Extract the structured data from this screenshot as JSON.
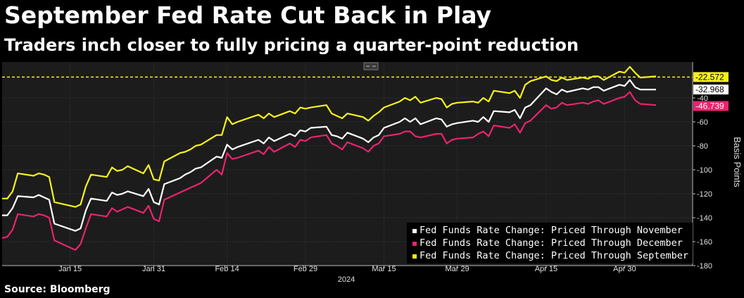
{
  "title": "September Fed Rate Cut Back in Play",
  "subtitle": "Traders inch closer to fully pricing a quarter-point reduction",
  "source": "Source: Bloomberg",
  "colors": {
    "background": "#000000",
    "plot_background": "#1c1c1c",
    "november": "#ffffff",
    "december": "#e8246e",
    "september": "#f7f21c"
  },
  "chart_data": {
    "type": "line",
    "ylabel": "Basis Points",
    "ylim": [
      -180,
      -10
    ],
    "yticks": [
      -40,
      -60,
      -80,
      -100,
      -120,
      -140,
      -160,
      -180
    ],
    "x_tick_labels": [
      "Jan 15",
      "Jan 31",
      "Feb 14",
      "Feb 29",
      "Mar 15",
      "Mar 29",
      "Apr 15",
      "Apr 30"
    ],
    "x_tick_dates": [
      "2024-01-15",
      "2024-01-31",
      "2024-02-14",
      "2024-02-29",
      "2024-03-15",
      "2024-03-29",
      "2024-04-15",
      "2024-04-30"
    ],
    "year_label": "2024",
    "xlim": [
      "2024-01-02",
      "2024-05-13"
    ],
    "reference_line": {
      "value": -22.572,
      "style": "dashed",
      "color": "#f7f21c"
    },
    "x": [
      "2024-01-02",
      "2024-01-03",
      "2024-01-04",
      "2024-01-05",
      "2024-01-08",
      "2024-01-09",
      "2024-01-10",
      "2024-01-11",
      "2024-01-12",
      "2024-01-16",
      "2024-01-17",
      "2024-01-18",
      "2024-01-19",
      "2024-01-22",
      "2024-01-23",
      "2024-01-24",
      "2024-01-25",
      "2024-01-26",
      "2024-01-29",
      "2024-01-30",
      "2024-01-31",
      "2024-02-01",
      "2024-02-02",
      "2024-02-05",
      "2024-02-06",
      "2024-02-07",
      "2024-02-08",
      "2024-02-09",
      "2024-02-12",
      "2024-02-13",
      "2024-02-14",
      "2024-02-15",
      "2024-02-16",
      "2024-02-20",
      "2024-02-21",
      "2024-02-22",
      "2024-02-23",
      "2024-02-26",
      "2024-02-27",
      "2024-02-28",
      "2024-02-29",
      "2024-03-01",
      "2024-03-04",
      "2024-03-05",
      "2024-03-06",
      "2024-03-07",
      "2024-03-08",
      "2024-03-11",
      "2024-03-12",
      "2024-03-13",
      "2024-03-14",
      "2024-03-15",
      "2024-03-18",
      "2024-03-19",
      "2024-03-20",
      "2024-03-21",
      "2024-03-22",
      "2024-03-25",
      "2024-03-26",
      "2024-03-27",
      "2024-03-28",
      "2024-03-29",
      "2024-04-01",
      "2024-04-02",
      "2024-04-03",
      "2024-04-04",
      "2024-04-05",
      "2024-04-08",
      "2024-04-09",
      "2024-04-10",
      "2024-04-11",
      "2024-04-12",
      "2024-04-15",
      "2024-04-16",
      "2024-04-17",
      "2024-04-18",
      "2024-04-19",
      "2024-04-22",
      "2024-04-23",
      "2024-04-24",
      "2024-04-25",
      "2024-04-26",
      "2024-04-29",
      "2024-04-30",
      "2024-05-01",
      "2024-05-02",
      "2024-05-03",
      "2024-05-06"
    ],
    "series": [
      {
        "name": "Fed Funds Rate Change: Priced Through November",
        "color": "#ffffff",
        "end_value": -32.968,
        "values": [
          -138,
          -138,
          -132,
          -122,
          -123,
          -121,
          -123,
          -125,
          -145,
          -151,
          -149,
          -134,
          -124,
          -126,
          -119,
          -121,
          -120,
          -118,
          -122,
          -116,
          -127,
          -129,
          -112,
          -107,
          -104,
          -102,
          -99,
          -98,
          -89,
          -90,
          -79,
          -83,
          -81,
          -75,
          -78,
          -73,
          -76,
          -70,
          -72,
          -67,
          -68,
          -65,
          -64,
          -71,
          -72,
          -74,
          -69,
          -74,
          -77,
          -73,
          -71,
          -65,
          -60,
          -57,
          -60,
          -57,
          -62,
          -57,
          -58,
          -64,
          -62,
          -61,
          -59,
          -60,
          -56,
          -60,
          -51,
          -52,
          -50,
          -57,
          -48,
          -46,
          -32,
          -35,
          -37,
          -33,
          -35,
          -32,
          -33,
          -31,
          -31,
          -34,
          -29,
          -30,
          -25,
          -31,
          -33,
          -33
        ]
      },
      {
        "name": "Fed Funds Rate Change: Priced Through December",
        "color": "#e8246e",
        "end_value": -46.739,
        "values": [
          -157,
          -156,
          -150,
          -137,
          -139,
          -137,
          -138,
          -140,
          -159,
          -167,
          -162,
          -149,
          -137,
          -139,
          -132,
          -135,
          -133,
          -131,
          -136,
          -130,
          -141,
          -143,
          -125,
          -119,
          -117,
          -115,
          -113,
          -111,
          -100,
          -104,
          -86,
          -91,
          -90,
          -84,
          -87,
          -81,
          -85,
          -78,
          -81,
          -75,
          -76,
          -73,
          -71,
          -78,
          -80,
          -83,
          -77,
          -82,
          -85,
          -80,
          -78,
          -72,
          -70,
          -68,
          -68,
          -72,
          -73,
          -70,
          -70,
          -78,
          -75,
          -74,
          -73,
          -70,
          -68,
          -72,
          -63,
          -65,
          -62,
          -69,
          -61,
          -59,
          -46,
          -49,
          -48,
          -44,
          -46,
          -44,
          -45,
          -43,
          -42,
          -45,
          -40,
          -39,
          -35,
          -42,
          -45,
          -46
        ]
      },
      {
        "name": "Fed Funds Rate Change: Priced Through September",
        "color": "#f7f21c",
        "end_value": -22.572,
        "values": [
          -124,
          -124,
          -118,
          -103,
          -105,
          -103,
          -104,
          -106,
          -127,
          -131,
          -129,
          -114,
          -104,
          -106,
          -98,
          -101,
          -100,
          -97,
          -103,
          -96,
          -108,
          -109,
          -93,
          -86,
          -85,
          -83,
          -80,
          -79,
          -71,
          -71,
          -56,
          -62,
          -60,
          -54,
          -57,
          -53,
          -56,
          -51,
          -53,
          -48,
          -49,
          -48,
          -46,
          -53,
          -55,
          -57,
          -53,
          -56,
          -59,
          -55,
          -52,
          -48,
          -43,
          -40,
          -42,
          -39,
          -44,
          -40,
          -41,
          -48,
          -45,
          -44,
          -43,
          -44,
          -40,
          -43,
          -34,
          -36,
          -34,
          -40,
          -29,
          -26,
          -22,
          -25,
          -26,
          -23,
          -25,
          -23,
          -24,
          -22,
          -22,
          -25,
          -18,
          -19,
          -14,
          -19,
          -23,
          -22
        ]
      }
    ],
    "legend_position": "bottom-right",
    "grid": true
  }
}
